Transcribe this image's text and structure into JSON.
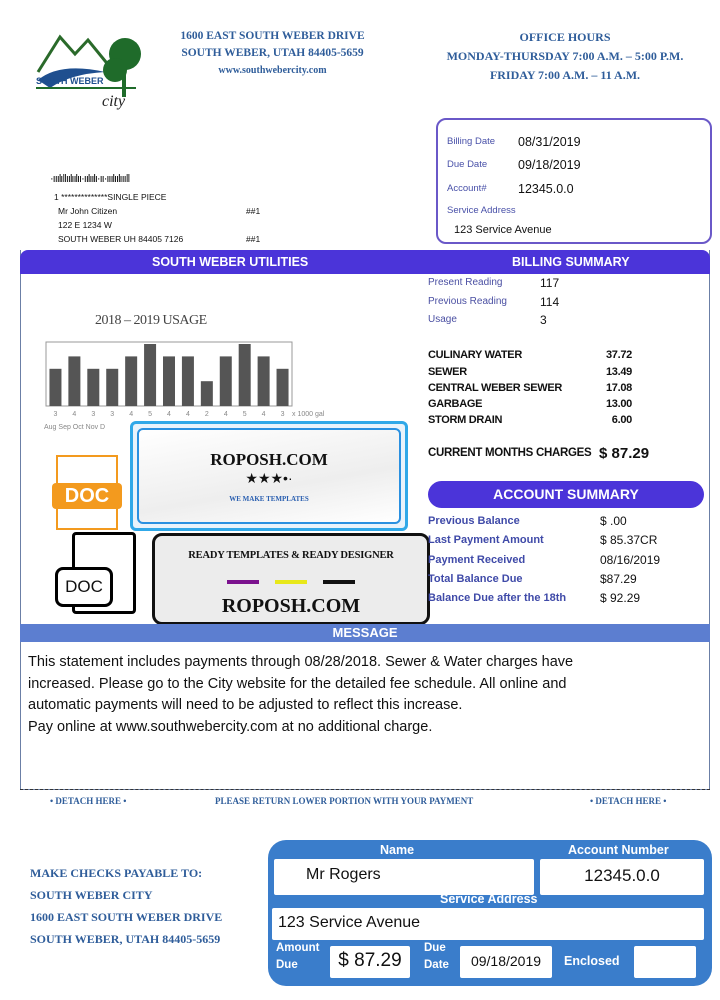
{
  "header": {
    "address_line1": "1600 EAST SOUTH WEBER DRIVE",
    "address_line2": "SOUTH WEBER, UTAH 84405-5659",
    "website": "www.southwebercity.com",
    "hours_title": "OFFICE HOURS",
    "hours_line1": "MONDAY-THURSDAY 7:00 A.M. – 5:00 P.M.",
    "hours_line2": "FRIDAY 7:00 A.M. – 11 A.M.",
    "logo_text": "SOUTH WEBER city"
  },
  "info": {
    "billing_date_label": "Billing Date",
    "billing_date": "08/31/2019",
    "due_date_label": "Due Date",
    "due_date": "09/18/2019",
    "account_label": "Account#",
    "account": "12345.0.0",
    "service_address_label": "Service Address",
    "service_address": "123 Service Avenue"
  },
  "mailing": {
    "barcode": "·ııılı‖ıılıılıı·ıılıılı·ıı·ııılıılııı‖",
    "line1": "1 **************SINGLE PIECE",
    "name": "Mr John Citizen",
    "name_code": "##1",
    "street": "122 E 1234 W",
    "city": "SOUTH WEBER UH 84405 7126",
    "city_code": "##1"
  },
  "sections": {
    "utilities": "SOUTH WEBER UTILITIES",
    "billing_summary": "BILLING SUMMARY",
    "account_summary": "ACCOUNT SUMMARY",
    "message": "MESSAGE"
  },
  "chart_data": {
    "type": "bar",
    "title": "2018 – 2019 USAGE",
    "values": [
      3,
      4,
      3,
      3,
      4,
      5,
      4,
      4,
      2,
      4,
      5,
      4,
      3
    ],
    "value_labels": [
      "3",
      "4",
      "3",
      "3",
      "4",
      "5",
      "4",
      "4",
      "2",
      "4",
      "5",
      "4",
      "3"
    ],
    "unit": "x 1000 gal",
    "months_visible": "Aug Sep Oct Nov D",
    "ylim": [
      0,
      5
    ],
    "color": "#555555"
  },
  "readings": [
    {
      "label": "Present Reading",
      "value": "117"
    },
    {
      "label": "Previous Reading",
      "value": "114"
    },
    {
      "label": "Usage",
      "value": "3"
    }
  ],
  "charges": [
    {
      "label": "CULINARY WATER",
      "value": "37.72"
    },
    {
      "label": "SEWER",
      "value": "13.49"
    },
    {
      "label": "CENTRAL WEBER SEWER",
      "value": "17.08"
    },
    {
      "label": "GARBAGE",
      "value": "13.00"
    },
    {
      "label": "STORM DRAIN",
      "value": "6.00"
    }
  ],
  "current_charges": {
    "label": "CURRENT MONTHS CHARGES",
    "value": "$ 87.29"
  },
  "account_summary": [
    {
      "label": "Previous Balance",
      "value": "$ .00"
    },
    {
      "label": "Last Payment Amount",
      "value": "$ 85.37CR"
    },
    {
      "label": "Payment Received",
      "value": "08/16/2019"
    },
    {
      "label": "Total Balance Due",
      "value": "$87.29"
    },
    {
      "label": "Balance Due after the 18th",
      "value": "$ 92.29"
    }
  ],
  "message": {
    "line1": "This statement includes payments through 08/28/2018. Sewer & Water charges have",
    "line2": "increased. Please go to the City website for the detailed fee schedule. All online and",
    "line3": "automatic payments will need to be adjusted to reflect this increase.",
    "line4": "Pay online at www.southwebercity.com at no additional charge."
  },
  "watermark": {
    "site": "ROPOSH.COM",
    "tagline": "WE MAKE TEMPLATES",
    "ready": "READY TEMPLATES & READY DESIGNER",
    "site2": "ROPOSH.COM",
    "doc1": "DOC",
    "doc2": "DOC"
  },
  "detach": {
    "left": "• DETACH HERE •",
    "center": "PLEASE RETURN LOWER PORTION WITH YOUR PAYMENT",
    "right": "• DETACH HERE •"
  },
  "payable": {
    "line1": "MAKE CHECKS PAYABLE TO:",
    "line2": "SOUTH WEBER CITY",
    "line3": "1600 EAST SOUTH WEBER DRIVE",
    "line4": "SOUTH WEBER, UTAH 84405-5659"
  },
  "stub": {
    "name_label": "Name",
    "name": "Mr Rogers",
    "account_label": "Account Number",
    "account": "12345.0.0",
    "service_label": "Service Address",
    "service": "123 Service Avenue",
    "amount_label1": "Amount",
    "amount_label2": "Due",
    "amount": "$ 87.29",
    "due_label1": "Due",
    "due_label2": "Date",
    "due": "09/18/2019",
    "enclosed_label": "Enclosed",
    "enclosed": ""
  }
}
